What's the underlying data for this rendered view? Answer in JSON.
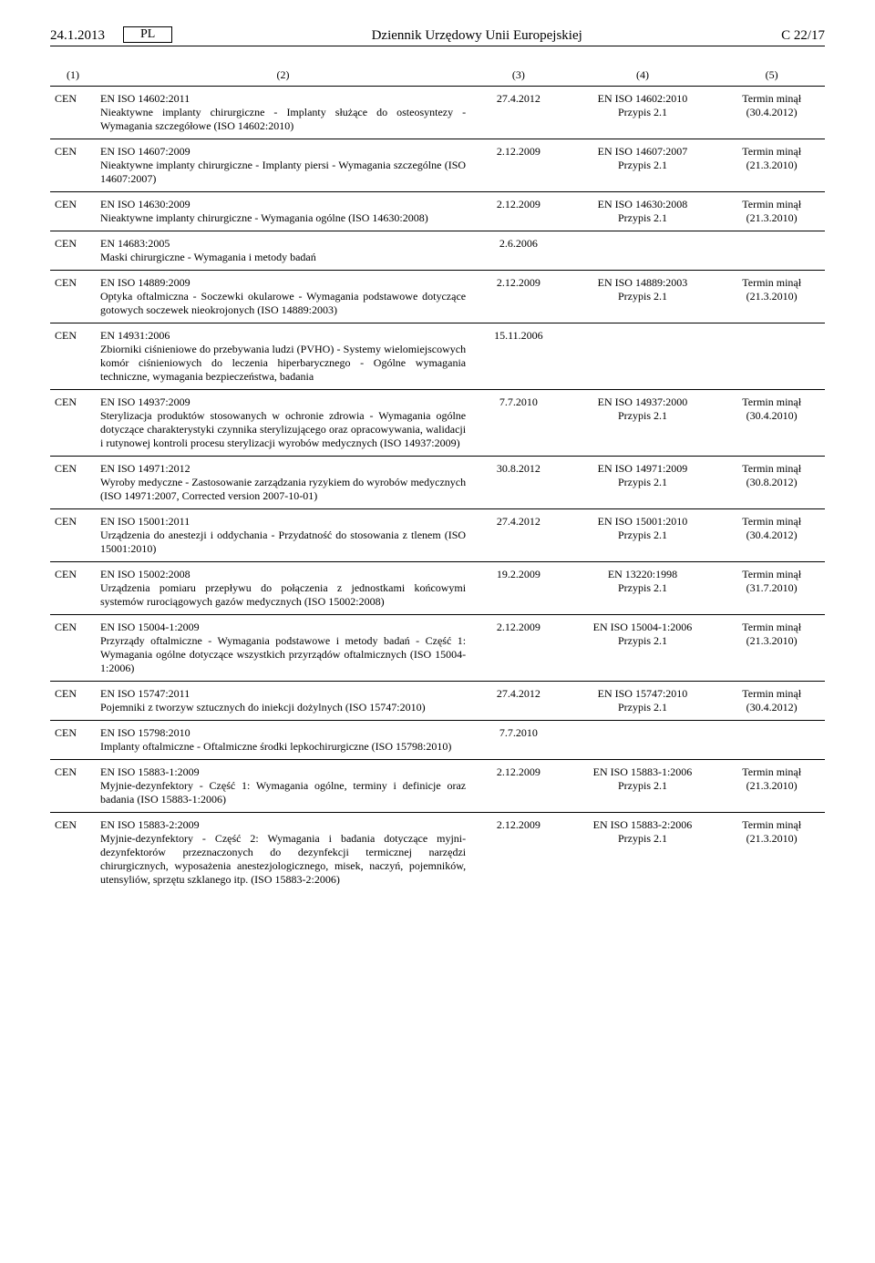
{
  "header": {
    "date": "24.1.2013",
    "lang": "PL",
    "journal": "Dziennik Urzędowy Unii Europejskiej",
    "page": "C 22/17"
  },
  "columns": {
    "c1": "(1)",
    "c2": "(2)",
    "c3": "(3)",
    "c4": "(4)",
    "c5": "(5)"
  },
  "rows": [
    {
      "org": "CEN",
      "std": "EN ISO 14602:2011",
      "desc": "Nieaktywne implanty chirurgiczne - Implanty służące do osteosyntezy - Wymagania szczegółowe (ISO 14602:2010)",
      "date": "27.4.2012",
      "ref_std": "EN ISO 14602:2010",
      "ref_note": "Przypis 2.1",
      "term": "Termin minął",
      "term_date": "(30.4.2012)"
    },
    {
      "org": "CEN",
      "std": "EN ISO 14607:2009",
      "desc": "Nieaktywne implanty chirurgiczne - Implanty piersi - Wymagania szczególne (ISO 14607:2007)",
      "date": "2.12.2009",
      "ref_std": "EN ISO 14607:2007",
      "ref_note": "Przypis 2.1",
      "term": "Termin minął",
      "term_date": "(21.3.2010)"
    },
    {
      "org": "CEN",
      "std": "EN ISO 14630:2009",
      "desc": "Nieaktywne implanty chirurgiczne - Wymagania ogólne (ISO 14630:2008)",
      "date": "2.12.2009",
      "ref_std": "EN ISO 14630:2008",
      "ref_note": "Przypis 2.1",
      "term": "Termin minął",
      "term_date": "(21.3.2010)"
    },
    {
      "org": "CEN",
      "std": "EN 14683:2005",
      "desc": "Maski chirurgiczne - Wymagania i metody badań",
      "date": "2.6.2006",
      "ref_std": "",
      "ref_note": "",
      "term": "",
      "term_date": ""
    },
    {
      "org": "CEN",
      "std": "EN ISO 14889:2009",
      "desc": "Optyka oftalmiczna - Soczewki okularowe - Wymagania podstawowe dotyczące gotowych soczewek nieokrojonych (ISO 14889:2003)",
      "date": "2.12.2009",
      "ref_std": "EN ISO 14889:2003",
      "ref_note": "Przypis 2.1",
      "term": "Termin minął",
      "term_date": "(21.3.2010)"
    },
    {
      "org": "CEN",
      "std": "EN 14931:2006",
      "desc": "Zbiorniki ciśnieniowe do przebywania ludzi (PVHO) - Systemy wielomiejscowych komór ciśnieniowych do leczenia hiperbarycznego - Ogólne wymagania techniczne, wymagania bezpieczeństwa, badania",
      "date": "15.11.2006",
      "ref_std": "",
      "ref_note": "",
      "term": "",
      "term_date": ""
    },
    {
      "org": "CEN",
      "std": "EN ISO 14937:2009",
      "desc": "Sterylizacja produktów stosowanych w ochronie zdrowia - Wymagania ogólne dotyczące charakterystyki czynnika sterylizującego oraz opracowywania, walidacji i rutynowej kontroli procesu sterylizacji wyrobów medycznych (ISO 14937:2009)",
      "date": "7.7.2010",
      "ref_std": "EN ISO 14937:2000",
      "ref_note": "Przypis 2.1",
      "term": "Termin minął",
      "term_date": "(30.4.2010)"
    },
    {
      "org": "CEN",
      "std": "EN ISO 14971:2012",
      "desc": "Wyroby medyczne - Zastosowanie zarządzania ryzykiem do wyrobów medycznych (ISO 14971:2007, Corrected version 2007-10-01)",
      "date": "30.8.2012",
      "ref_std": "EN ISO 14971:2009",
      "ref_note": "Przypis 2.1",
      "term": "Termin minął",
      "term_date": "(30.8.2012)"
    },
    {
      "org": "CEN",
      "std": "EN ISO 15001:2011",
      "desc": "Urządzenia do anestezji i oddychania - Przydatność do stosowania z tlenem (ISO 15001:2010)",
      "date": "27.4.2012",
      "ref_std": "EN ISO 15001:2010",
      "ref_note": "Przypis 2.1",
      "term": "Termin minął",
      "term_date": "(30.4.2012)"
    },
    {
      "org": "CEN",
      "std": "EN ISO 15002:2008",
      "desc": "Urządzenia pomiaru przepływu do połączenia z jednostkami końcowymi systemów rurociągowych gazów medycznych (ISO 15002:2008)",
      "date": "19.2.2009",
      "ref_std": "EN 13220:1998",
      "ref_note": "Przypis 2.1",
      "term": "Termin minął",
      "term_date": "(31.7.2010)"
    },
    {
      "org": "CEN",
      "std": "EN ISO 15004-1:2009",
      "desc": "Przyrządy oftalmiczne - Wymagania podstawowe i metody badań - Część 1: Wymagania ogólne dotyczące wszystkich przyrządów oftalmicznych (ISO 15004-1:2006)",
      "date": "2.12.2009",
      "ref_std": "EN ISO 15004-1:2006",
      "ref_note": "Przypis 2.1",
      "term": "Termin minął",
      "term_date": "(21.3.2010)"
    },
    {
      "org": "CEN",
      "std": "EN ISO 15747:2011",
      "desc": "Pojemniki z tworzyw sztucznych do iniekcji dożylnych (ISO 15747:2010)",
      "date": "27.4.2012",
      "ref_std": "EN ISO 15747:2010",
      "ref_note": "Przypis 2.1",
      "term": "Termin minął",
      "term_date": "(30.4.2012)"
    },
    {
      "org": "CEN",
      "std": "EN ISO 15798:2010",
      "desc": "Implanty oftalmiczne - Oftalmiczne środki lepkochirurgiczne (ISO 15798:2010)",
      "date": "7.7.2010",
      "ref_std": "",
      "ref_note": "",
      "term": "",
      "term_date": ""
    },
    {
      "org": "CEN",
      "std": "EN ISO 15883-1:2009",
      "desc": "Myjnie-dezynfektory - Część 1: Wymagania ogólne, terminy i definicje oraz badania (ISO 15883-1:2006)",
      "date": "2.12.2009",
      "ref_std": "EN ISO 15883-1:2006",
      "ref_note": "Przypis 2.1",
      "term": "Termin minął",
      "term_date": "(21.3.2010)"
    },
    {
      "org": "CEN",
      "std": "EN ISO 15883-2:2009",
      "desc": "Myjnie-dezynfektory - Część 2: Wymagania i badania dotyczące myjni-dezynfektorów przeznaczonych do dezynfekcji termicznej narzędzi chirurgicznych, wyposażenia anestezjologicznego, misek, naczyń, pojemników, utensyliów, sprzętu szklanego itp. (ISO 15883-2:2006)",
      "date": "2.12.2009",
      "ref_std": "EN ISO 15883-2:2006",
      "ref_note": "Przypis 2.1",
      "term": "Termin minął",
      "term_date": "(21.3.2010)"
    }
  ]
}
